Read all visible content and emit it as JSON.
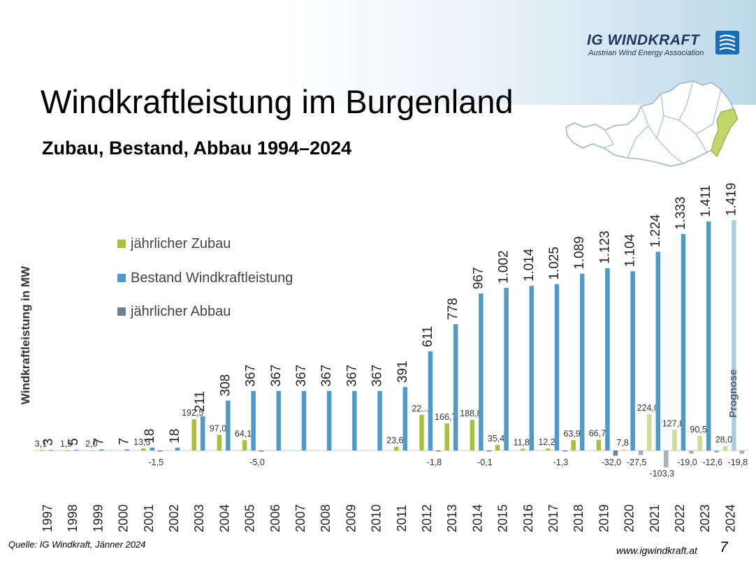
{
  "header": {
    "logo_name": "IG WINDKRAFT",
    "logo_subtitle": "Austrian Wind Energy Association",
    "title": "Windkraftleistung im Burgenland",
    "subtitle": "Zubau, Bestand, Abbau 1994–2024"
  },
  "map": {
    "icon": "austria-map-icon",
    "highlight_region": "Burgenland",
    "highlight_color": "#c3d66b"
  },
  "footer": {
    "source": "Quelle: IG Windkraft, Jänner 2024",
    "url": "www.igwindkraft.at",
    "page": "7"
  },
  "chart_data": {
    "type": "bar",
    "ylabel": "Windkraftleistung in MW",
    "legend_position": "left",
    "annotation": "Prognose",
    "colors": {
      "zubau": "#a9c03a",
      "bestand": "#4f9ac8",
      "abbau": "#74808d",
      "zubau_prognose": "#cfdc95",
      "bestand_prognose": "#a9cde3",
      "abbau_prognose": "#a8b0b8"
    },
    "categories": [
      "1997",
      "1998",
      "1999",
      "2000",
      "2001",
      "2002",
      "2003",
      "2004",
      "2005",
      "2006",
      "2007",
      "2008",
      "2009",
      "2010",
      "2011",
      "2012",
      "2013",
      "2014",
      "2015",
      "2016",
      "2017",
      "2018",
      "2019",
      "2020",
      "2021",
      "2022",
      "2023",
      "2024"
    ],
    "series": [
      {
        "name": "jährlicher Zubau",
        "values": [
          3.1,
          1.5,
          2.0,
          null,
          13.3,
          null,
          192.5,
          97.0,
          64.1,
          null,
          null,
          null,
          null,
          null,
          23.6,
          220,
          166.7,
          188.8,
          35.4,
          11.8,
          12.2,
          63.9,
          66.7,
          7.8,
          224.0,
          127.8,
          90.5,
          28.0
        ],
        "labels": [
          "3,1",
          "1,5",
          "2,0",
          "",
          "13,3",
          "",
          "192,5",
          "97,0",
          "64,1",
          "",
          "",
          "",
          "",
          "",
          "23,6",
          "22...",
          "166,7",
          "188,8",
          "35,4",
          "11,8",
          "12,2",
          "63,9",
          "66,7",
          "7,8",
          "224,0",
          "127,8",
          "90,5",
          "28,0"
        ]
      },
      {
        "name": "Bestand Windkraftleistung",
        "values": [
          3,
          5,
          7,
          7,
          18,
          18,
          211,
          308,
          367,
          367,
          367,
          367,
          367,
          367,
          391,
          611,
          778,
          967,
          1002,
          1014,
          1025,
          1089,
          1123,
          1104,
          1224,
          1333,
          1411,
          1419
        ],
        "labels": [
          "3",
          "5",
          "7",
          "7",
          "18",
          "18",
          "211",
          "308",
          "367",
          "367",
          "367",
          "367",
          "367",
          "367",
          "391",
          "611",
          "778",
          "967",
          "1.002",
          "1.014",
          "1.025",
          "1.089",
          "1.123",
          "1.104",
          "1.224",
          "1.333",
          "1.411",
          "1.419"
        ]
      },
      {
        "name": "jährlicher Abbau",
        "values": [
          null,
          null,
          null,
          null,
          -1.5,
          null,
          null,
          null,
          -5.0,
          null,
          null,
          null,
          null,
          null,
          null,
          -1.8,
          null,
          -0.1,
          null,
          null,
          -1.3,
          null,
          -32.0,
          -27.5,
          -103.3,
          -19.0,
          -12.6,
          -19.8
        ],
        "labels": [
          "",
          "",
          "",
          "",
          "-1,5",
          "",
          "",
          "",
          "-5,0",
          "",
          "",
          "",
          "",
          "",
          "",
          "-1,8",
          "",
          "-0,1",
          "",
          "",
          "-1,3",
          "",
          "-32,0",
          "-27,5",
          "-103,3",
          "-19,0",
          "-12,6",
          "-19,8"
        ]
      }
    ],
    "prognose_from": "2020",
    "ylim": [
      -110,
      1450
    ],
    "grid": false
  }
}
